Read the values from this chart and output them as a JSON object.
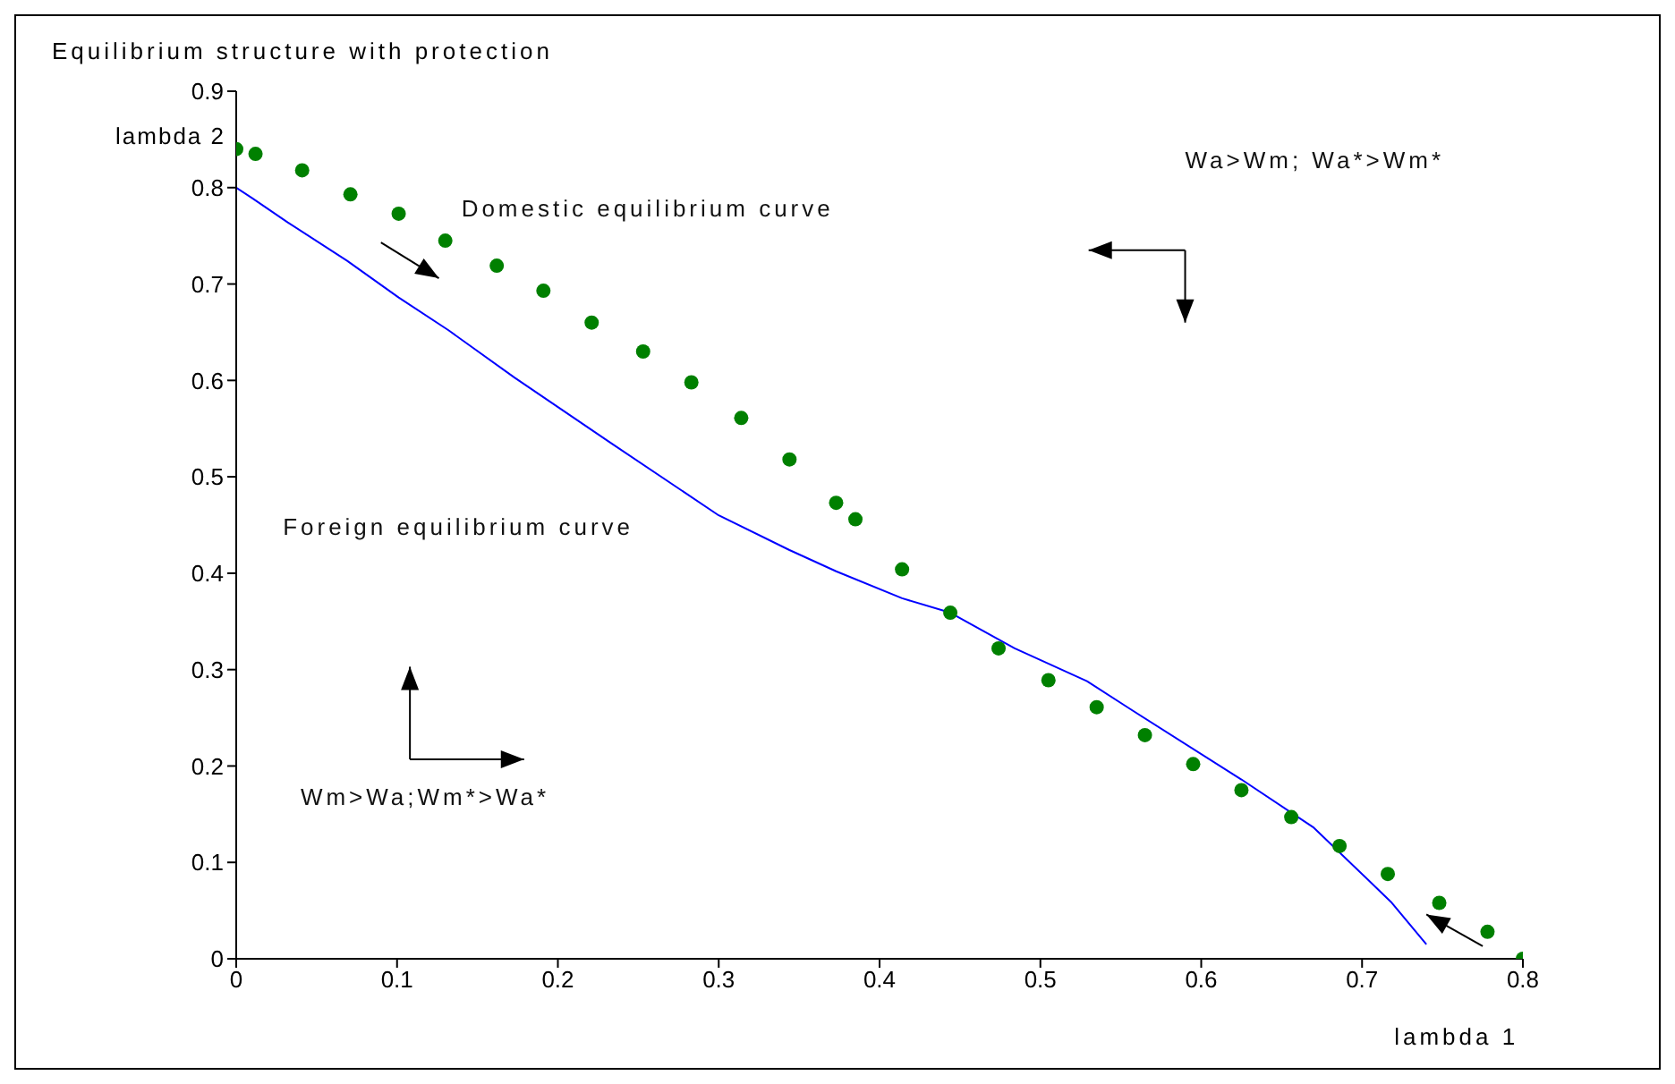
{
  "chart_data": {
    "type": "line",
    "title": "Equilibrium structure with protection",
    "xlabel": "lambda 1",
    "ylabel": "lambda 2",
    "xlim": [
      0,
      0.8
    ],
    "ylim": [
      0,
      0.9
    ],
    "xticks": [
      0,
      0.1,
      0.2,
      0.3,
      0.4,
      0.5,
      0.6,
      0.7,
      0.8
    ],
    "yticks": [
      0,
      0.1,
      0.2,
      0.3,
      0.4,
      0.5,
      0.6,
      0.7,
      0.8,
      0.9
    ],
    "grid": false,
    "legend": false,
    "series": [
      {
        "type": "scatter",
        "marker": "circle",
        "color": "#008000",
        "x": [
          0,
          0.012,
          0.041,
          0.071,
          0.101,
          0.13,
          0.162,
          0.191,
          0.221,
          0.253,
          0.283,
          0.314,
          0.344,
          0.373,
          0.385,
          0.414,
          0.444,
          0.474,
          0.505,
          0.535,
          0.565,
          0.595,
          0.625,
          0.656,
          0.686,
          0.716,
          0.748,
          0.778,
          0.8
        ],
        "values": [
          0.84,
          0.835,
          0.818,
          0.793,
          0.773,
          0.745,
          0.719,
          0.693,
          0.66,
          0.63,
          0.598,
          0.561,
          0.518,
          0.473,
          0.456,
          0.404,
          0.359,
          0.322,
          0.289,
          0.261,
          0.232,
          0.202,
          0.175,
          0.147,
          0.117,
          0.088,
          0.058,
          0.028,
          0
        ]
      },
      {
        "color": "#0000ff",
        "x": [
          0,
          0.01,
          0.032,
          0.069,
          0.101,
          0.132,
          0.173,
          0.233,
          0.3,
          0.344,
          0.373,
          0.414,
          0.444,
          0.484,
          0.529,
          0.555,
          0.625,
          0.67,
          0.718,
          0.74
        ],
        "values": [
          0.8,
          0.789,
          0.764,
          0.724,
          0.686,
          0.652,
          0.603,
          0.535,
          0.46,
          0.424,
          0.402,
          0.374,
          0.359,
          0.322,
          0.288,
          0.26,
          0.186,
          0.136,
          0.059,
          0.015
        ]
      }
    ],
    "annotations": [
      "Domestic equilibrium curve",
      "Foreign equilibrium curve",
      "Wa>Wm; Wa*>Wm*",
      "Wm>Wa;Wm*>Wa*"
    ]
  }
}
